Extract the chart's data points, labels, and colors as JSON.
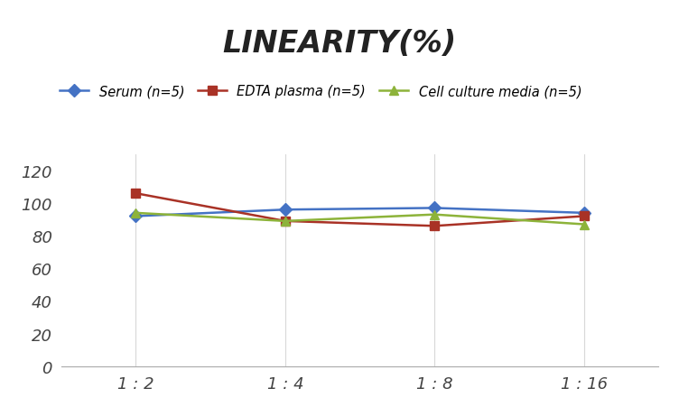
{
  "title": "LINEARITY(%)",
  "x_labels": [
    "1 : 2",
    "1 : 4",
    "1 : 8",
    "1 : 16"
  ],
  "x_positions": [
    0,
    1,
    2,
    3
  ],
  "series": [
    {
      "label": "Serum (n=5)",
      "values": [
        92,
        96,
        97,
        94
      ],
      "color": "#4472C4",
      "marker": "D",
      "linewidth": 1.8
    },
    {
      "label": "EDTA plasma (n=5)",
      "values": [
        106,
        89,
        86,
        92
      ],
      "color": "#A93226",
      "marker": "s",
      "linewidth": 1.8
    },
    {
      "label": "Cell culture media (n=5)",
      "values": [
        94,
        89,
        93,
        87
      ],
      "color": "#8DB33A",
      "marker": "^",
      "linewidth": 1.8
    }
  ],
  "ylim": [
    0,
    130
  ],
  "yticks": [
    0,
    20,
    40,
    60,
    80,
    100,
    120
  ],
  "grid_color": "#D8D8D8",
  "background_color": "#FFFFFF",
  "title_fontsize": 24,
  "legend_fontsize": 10.5,
  "tick_fontsize": 13
}
